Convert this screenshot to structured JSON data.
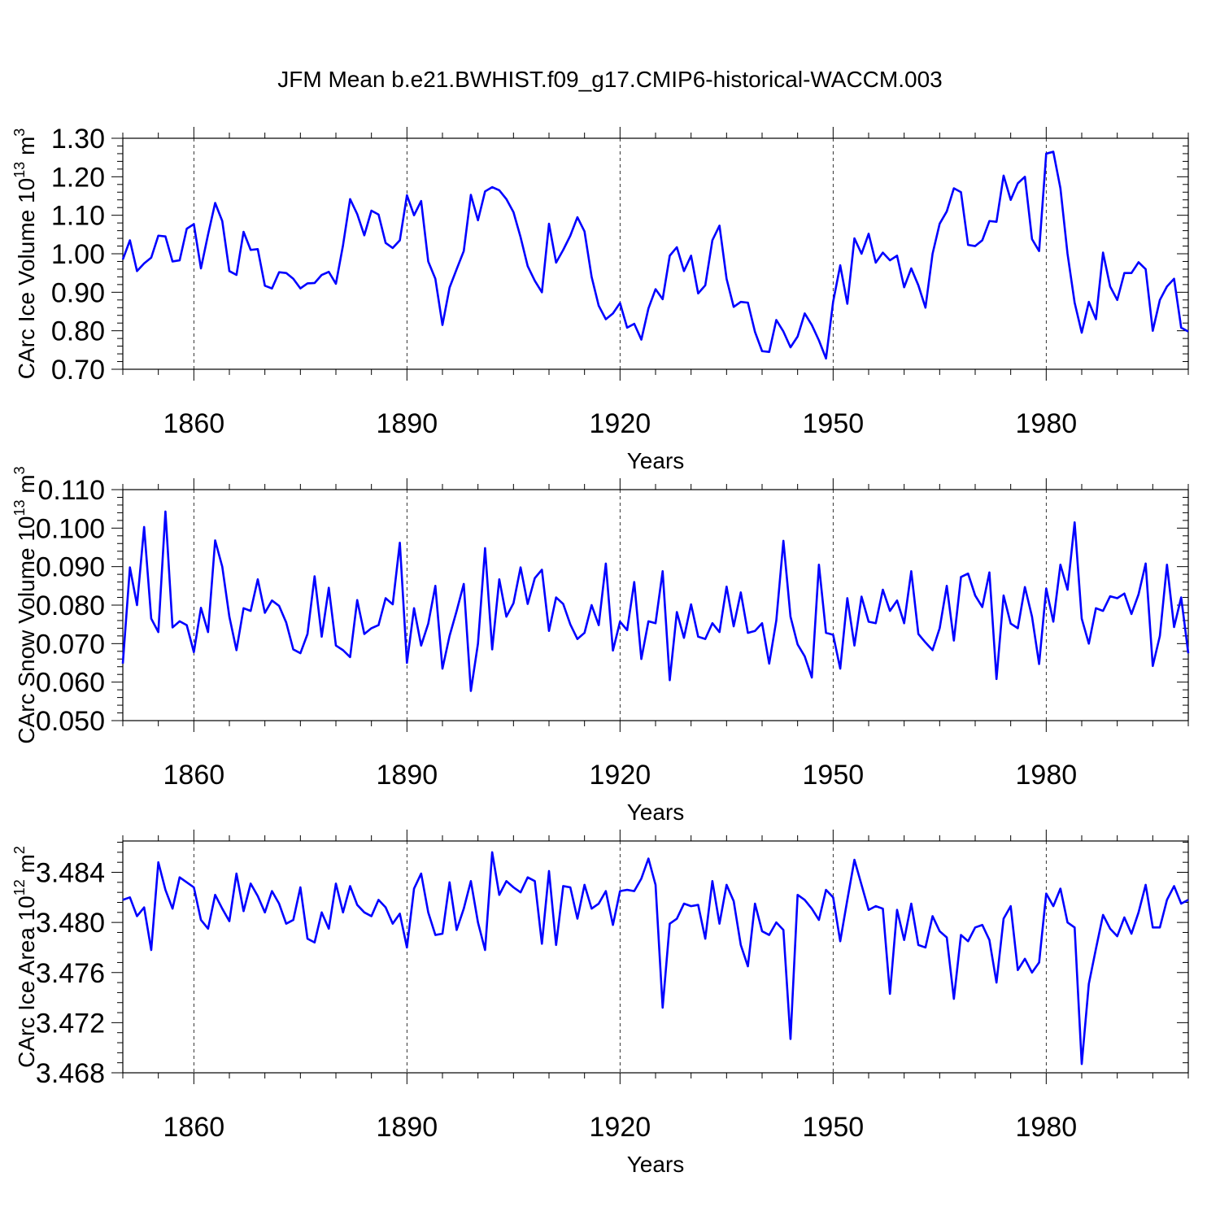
{
  "title": "JFM Mean b.e21.BWHIST.f09_g17.CMIP6-historical-WACCM.003",
  "line_color": "#0000ff",
  "chart_data": [
    {
      "type": "line",
      "title": "JFM Mean b.e21.BWHIST.f09_g17.CMIP6-historical-WACCM.003",
      "xlabel": "Years",
      "ylabel": "CArc Ice Volume 10",
      "ylabel_exp": "13",
      "ylabel_unit": " m",
      "ylabel_unit_exp": "3",
      "xlim": [
        1850,
        2000
      ],
      "ylim": [
        0.7,
        1.3
      ],
      "xticks": [
        1860,
        1890,
        1920,
        1950,
        1980
      ],
      "xtick_labels": [
        "1860",
        "1890",
        "1920",
        "1950",
        "1980"
      ],
      "yticks": [
        0.7,
        0.8,
        0.9,
        1.0,
        1.1,
        1.2,
        1.3
      ],
      "ytick_labels": [
        "0.70",
        "0.80",
        "0.90",
        "1.00",
        "1.10",
        "1.20",
        "1.30"
      ],
      "start_year": 1850,
      "values": [
        0.985,
        1.035,
        0.955,
        0.975,
        0.99,
        1.047,
        1.045,
        0.98,
        0.983,
        1.065,
        1.077,
        0.962,
        1.05,
        1.132,
        1.085,
        0.955,
        0.945,
        1.057,
        1.01,
        1.012,
        0.917,
        0.91,
        0.952,
        0.95,
        0.935,
        0.91,
        0.923,
        0.924,
        0.945,
        0.953,
        0.922,
        1.022,
        1.142,
        1.103,
        1.048,
        1.112,
        1.102,
        1.028,
        1.015,
        1.035,
        1.152,
        1.1,
        1.137,
        0.98,
        0.935,
        0.815,
        0.912,
        0.96,
        1.007,
        1.153,
        1.087,
        1.162,
        1.173,
        1.165,
        1.142,
        1.108,
        1.043,
        0.968,
        0.93,
        0.9,
        1.078,
        0.977,
        1.01,
        1.047,
        1.095,
        1.058,
        0.94,
        0.865,
        0.83,
        0.845,
        0.872,
        0.808,
        0.818,
        0.777,
        0.858,
        0.908,
        0.882,
        0.995,
        1.017,
        0.955,
        0.995,
        0.897,
        0.918,
        1.035,
        1.073,
        0.935,
        0.862,
        0.875,
        0.873,
        0.797,
        0.747,
        0.745,
        0.828,
        0.798,
        0.757,
        0.785,
        0.845,
        0.815,
        0.775,
        0.728,
        0.875,
        0.97,
        0.87,
        1.04,
        1.0,
        1.052,
        0.977,
        1.003,
        0.983,
        0.995,
        0.913,
        0.962,
        0.918,
        0.86,
        1.0,
        1.078,
        1.11,
        1.17,
        1.16,
        1.023,
        1.02,
        1.035,
        1.085,
        1.083,
        1.203,
        1.14,
        1.183,
        1.2,
        1.038,
        1.007,
        1.26,
        1.265,
        1.17,
        1.0,
        0.873,
        0.795,
        0.875,
        0.83,
        1.003,
        0.915,
        0.88,
        0.95,
        0.95,
        0.978,
        0.96,
        0.8,
        0.88,
        0.915,
        0.935,
        0.808,
        0.798
      ]
    },
    {
      "type": "line",
      "xlabel": "Years",
      "ylabel": "CArc Snow Volume 10",
      "ylabel_exp": "13",
      "ylabel_unit": " m",
      "ylabel_unit_exp": "3",
      "xlim": [
        1850,
        2000
      ],
      "ylim": [
        0.05,
        0.11
      ],
      "xticks": [
        1860,
        1890,
        1920,
        1950,
        1980
      ],
      "xtick_labels": [
        "1860",
        "1890",
        "1920",
        "1950",
        "1980"
      ],
      "yticks": [
        0.05,
        0.06,
        0.07,
        0.08,
        0.09,
        0.1,
        0.11
      ],
      "ytick_labels": [
        "0.050",
        "0.060",
        "0.070",
        "0.080",
        "0.090",
        "0.100",
        "0.110"
      ],
      "start_year": 1850,
      "values": [
        0.0648,
        0.0898,
        0.08,
        0.1003,
        0.0765,
        0.073,
        0.1043,
        0.0742,
        0.0758,
        0.0748,
        0.0678,
        0.0793,
        0.073,
        0.0968,
        0.09,
        0.077,
        0.0683,
        0.0792,
        0.0785,
        0.0867,
        0.078,
        0.0812,
        0.0798,
        0.0755,
        0.0685,
        0.0675,
        0.0725,
        0.0875,
        0.0718,
        0.0845,
        0.0695,
        0.0683,
        0.0665,
        0.0813,
        0.0725,
        0.074,
        0.0748,
        0.0818,
        0.0802,
        0.0962,
        0.065,
        0.0792,
        0.0695,
        0.0752,
        0.085,
        0.0635,
        0.072,
        0.0785,
        0.0855,
        0.0577,
        0.07,
        0.0948,
        0.0685,
        0.0867,
        0.077,
        0.0805,
        0.0898,
        0.0803,
        0.087,
        0.0892,
        0.0733,
        0.082,
        0.0803,
        0.075,
        0.0712,
        0.0728,
        0.08,
        0.0748,
        0.0908,
        0.0682,
        0.0757,
        0.0735,
        0.086,
        0.066,
        0.0758,
        0.0753,
        0.0888,
        0.0605,
        0.0782,
        0.0715,
        0.0802,
        0.0718,
        0.0712,
        0.0753,
        0.073,
        0.0848,
        0.0745,
        0.0833,
        0.0728,
        0.0733,
        0.0753,
        0.0648,
        0.076,
        0.0967,
        0.077,
        0.0698,
        0.0667,
        0.0612,
        0.0905,
        0.0728,
        0.0723,
        0.0635,
        0.0818,
        0.0695,
        0.0822,
        0.0757,
        0.0753,
        0.084,
        0.0785,
        0.0812,
        0.0753,
        0.0888,
        0.0725,
        0.0703,
        0.0683,
        0.074,
        0.085,
        0.0708,
        0.0873,
        0.0882,
        0.0825,
        0.0795,
        0.0885,
        0.0608,
        0.0825,
        0.0752,
        0.074,
        0.0847,
        0.077,
        0.0647,
        0.0843,
        0.0757,
        0.0905,
        0.084,
        0.1015,
        0.0765,
        0.07,
        0.0792,
        0.0785,
        0.0823,
        0.0818,
        0.083,
        0.0777,
        0.0828,
        0.0908,
        0.0642,
        0.072,
        0.0905,
        0.0743,
        0.082,
        0.0675
      ]
    },
    {
      "type": "line",
      "xlabel": "Years",
      "ylabel": "CArc Ice Area 10",
      "ylabel_exp": "12",
      "ylabel_unit": " m",
      "ylabel_unit_exp": "2",
      "xlim": [
        1850,
        2000
      ],
      "ylim": [
        3.468,
        3.4865
      ],
      "xticks": [
        1860,
        1890,
        1920,
        1950,
        1980
      ],
      "xtick_labels": [
        "1860",
        "1890",
        "1920",
        "1950",
        "1980"
      ],
      "yticks": [
        3.468,
        3.472,
        3.476,
        3.48,
        3.484
      ],
      "ytick_labels": [
        "3.468",
        "3.472",
        "3.476",
        "3.480",
        "3.484"
      ],
      "start_year": 1850,
      "values": [
        3.4818,
        3.482,
        3.4805,
        3.4812,
        3.4778,
        3.4848,
        3.4826,
        3.4811,
        3.4836,
        3.4832,
        3.4828,
        3.4802,
        3.4795,
        3.4822,
        3.4811,
        3.4801,
        3.4839,
        3.4809,
        3.4831,
        3.4821,
        3.4808,
        3.4825,
        3.4815,
        3.4799,
        3.4802,
        3.4828,
        3.4787,
        3.4784,
        3.4808,
        3.4795,
        3.4831,
        3.4808,
        3.4829,
        3.4814,
        3.4808,
        3.4805,
        3.4818,
        3.4812,
        3.4799,
        3.4807,
        3.478,
        3.4827,
        3.4839,
        3.4808,
        3.479,
        3.4791,
        3.4832,
        3.4794,
        3.4811,
        3.4833,
        3.48,
        3.4778,
        3.4856,
        3.4822,
        3.4833,
        3.4828,
        3.4824,
        3.4836,
        3.4833,
        3.4783,
        3.4841,
        3.4782,
        3.4829,
        3.4828,
        3.4803,
        3.483,
        3.4811,
        3.4815,
        3.4825,
        3.4798,
        3.4825,
        3.4826,
        3.4825,
        3.4835,
        3.4851,
        3.483,
        3.4732,
        3.4799,
        3.4803,
        3.4815,
        3.4813,
        3.4814,
        3.4787,
        3.4833,
        3.4799,
        3.483,
        3.4817,
        3.4782,
        3.4765,
        3.4815,
        3.4793,
        3.479,
        3.48,
        3.4794,
        3.4707,
        3.4822,
        3.4818,
        3.4811,
        3.4802,
        3.4826,
        3.482,
        3.4785,
        3.4818,
        3.485,
        3.483,
        3.481,
        3.4813,
        3.4811,
        3.4743,
        3.481,
        3.4786,
        3.4815,
        3.4782,
        3.478,
        3.4805,
        3.4793,
        3.4788,
        3.4739,
        3.479,
        3.4785,
        3.4796,
        3.4798,
        3.4786,
        3.4752,
        3.4803,
        3.4813,
        3.4762,
        3.4771,
        3.476,
        3.4768,
        3.4823,
        3.4813,
        3.4827,
        3.48,
        3.4796,
        3.4687,
        3.4751,
        3.4779,
        3.4806,
        3.4795,
        3.4789,
        3.4804,
        3.4791,
        3.4808,
        3.483,
        3.4796,
        3.4796,
        3.4818,
        3.4829,
        3.4815,
        3.4818
      ]
    }
  ]
}
